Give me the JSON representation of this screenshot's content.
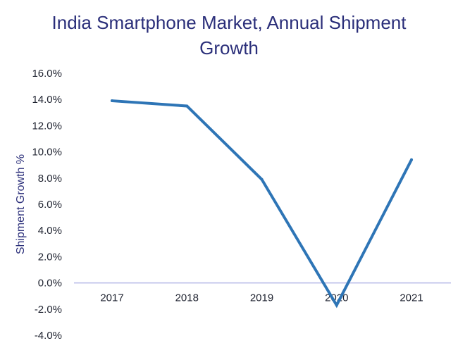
{
  "chart_data": {
    "type": "line",
    "title_line1": "India Smartphone Market, Annual Shipment",
    "title_line2": "Growth",
    "xlabel": "",
    "ylabel": "Shipment Growth %",
    "categories": [
      "2017",
      "2018",
      "2019",
      "2020",
      "2021"
    ],
    "series": [
      {
        "name": "Shipment Growth",
        "values": [
          13.9,
          13.5,
          7.9,
          -1.7,
          9.4
        ]
      }
    ],
    "ylim": [
      -4.0,
      16.0
    ],
    "y_ticks": [
      16.0,
      14.0,
      12.0,
      10.0,
      8.0,
      6.0,
      4.0,
      2.0,
      0.0,
      -2.0,
      -4.0
    ],
    "y_tick_labels": [
      "16.0%",
      "14.0%",
      "12.0%",
      "10.0%",
      "8.0%",
      "6.0%",
      "4.0%",
      "2.0%",
      "0.0%",
      "-2.0%",
      "-4.0%"
    ],
    "grid": false,
    "legend": "none",
    "line_color": "#2e75b6",
    "axis_line_color": "#b4b8e6",
    "title_color": "#2b2f7a",
    "ylabel_color": "#2b2f7a"
  }
}
